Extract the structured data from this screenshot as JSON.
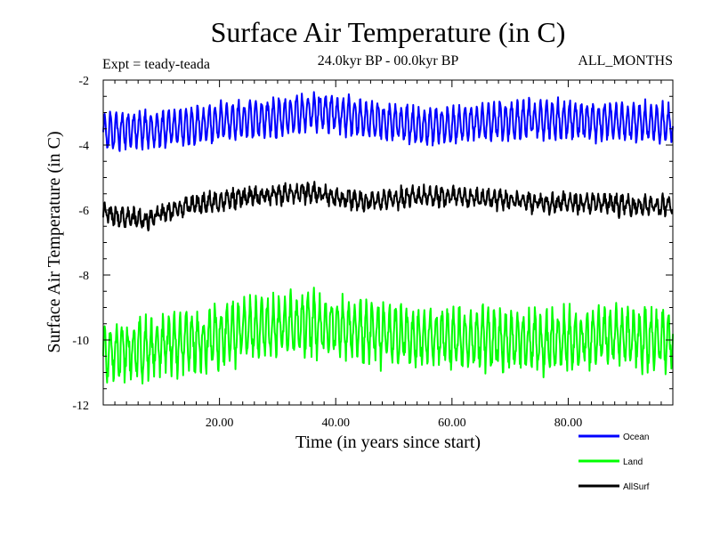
{
  "chart_data": {
    "type": "line",
    "title": "Surface Air Temperature (in C)",
    "subtitle_left": "Expt = teady-teada",
    "subtitle_center": "24.0kyr BP - 00.0kyr BP",
    "subtitle_right": "ALL_MONTHS",
    "xlabel": "Time (in years since start)",
    "ylabel": "Surface Air Temperature (in C)",
    "xlim": [
      0,
      98
    ],
    "ylim": [
      -12,
      -2
    ],
    "x_ticks": [
      20,
      40,
      60,
      80
    ],
    "x_tick_labels": [
      "20.00",
      "40.00",
      "60.00",
      "80.00"
    ],
    "y_ticks": [
      -2,
      -4,
      -6,
      -8,
      -10,
      -12
    ],
    "y_tick_labels": [
      "-2",
      "-4",
      "-6",
      "-8",
      "-10",
      "-12"
    ],
    "x_range_years": 98,
    "legend_position": "bottom-right",
    "series": [
      {
        "name": "Ocean",
        "color": "#0000ff",
        "mean": -3.4,
        "seasonal_amplitude": 0.5,
        "noise": 0.12,
        "slow_variation": [
          [
            0,
            -3.6
          ],
          [
            10,
            -3.5
          ],
          [
            20,
            -3.3
          ],
          [
            30,
            -3.15
          ],
          [
            37,
            -2.95
          ],
          [
            45,
            -3.2
          ],
          [
            55,
            -3.45
          ],
          [
            65,
            -3.3
          ],
          [
            75,
            -3.2
          ],
          [
            85,
            -3.25
          ],
          [
            98,
            -3.35
          ]
        ]
      },
      {
        "name": "Land",
        "color": "#00ff00",
        "mean": -9.9,
        "seasonal_amplitude": 0.75,
        "noise": 0.3,
        "slow_variation": [
          [
            0,
            -10.4
          ],
          [
            10,
            -10.2
          ],
          [
            20,
            -9.9
          ],
          [
            30,
            -9.5
          ],
          [
            37,
            -9.5
          ],
          [
            45,
            -9.7
          ],
          [
            55,
            -9.9
          ],
          [
            65,
            -10.0
          ],
          [
            75,
            -10.1
          ],
          [
            85,
            -9.9
          ],
          [
            98,
            -10.0
          ]
        ]
      },
      {
        "name": "AllSurf",
        "color": "#000000",
        "mean": -5.8,
        "seasonal_amplitude": 0.2,
        "noise": 0.17,
        "slow_variation": [
          [
            0,
            -6.1
          ],
          [
            7,
            -6.3
          ],
          [
            15,
            -5.85
          ],
          [
            25,
            -5.6
          ],
          [
            35,
            -5.45
          ],
          [
            45,
            -5.75
          ],
          [
            55,
            -5.55
          ],
          [
            65,
            -5.65
          ],
          [
            75,
            -5.75
          ],
          [
            85,
            -5.8
          ],
          [
            98,
            -5.9
          ]
        ]
      }
    ],
    "legend": [
      {
        "name": "Ocean",
        "color": "#0000ff"
      },
      {
        "name": "Land",
        "color": "#00ff00"
      },
      {
        "name": "AllSurf",
        "color": "#000000"
      }
    ]
  }
}
